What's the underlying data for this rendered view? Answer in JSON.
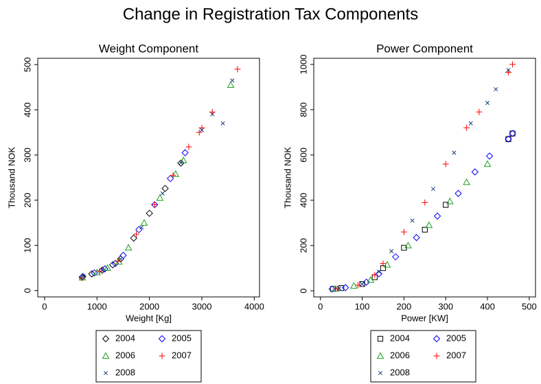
{
  "title": "Change in Registration Tax Components",
  "chart_data": [
    {
      "type": "scatter",
      "title": "Weight Component",
      "x_label": "Weight [Kg]",
      "y_label": "Thousand NOK",
      "xlim": [
        -130,
        4100
      ],
      "ylim": [
        -14,
        514
      ],
      "xticks": [
        0,
        1000,
        2000,
        3000,
        4000
      ],
      "yticks": [
        0,
        100,
        200,
        300,
        400,
        500
      ],
      "series": [
        {
          "name": "2004",
          "color": "#000000",
          "marker": "diamond",
          "x": [
            720,
            900,
            1100,
            1300,
            1450,
            1700,
            2000,
            2300,
            2600
          ],
          "values": [
            30,
            37,
            45,
            57,
            70,
            116,
            171,
            226,
            282
          ]
        },
        {
          "name": "2005",
          "color": "#0000ff",
          "marker": "diamond",
          "x": [
            730,
            950,
            1150,
            1350,
            1500,
            1800,
            2100,
            2400,
            2680
          ],
          "values": [
            31,
            39,
            48,
            60,
            78,
            135,
            190,
            248,
            305
          ]
        },
        {
          "name": "2006",
          "color": "#1e9e1e",
          "marker": "triangle",
          "x": [
            720,
            1000,
            1200,
            1420,
            1600,
            1900,
            2200,
            2500,
            2650,
            3550
          ],
          "values": [
            29,
            40,
            50,
            64,
            95,
            150,
            205,
            258,
            288,
            455
          ]
        },
        {
          "name": "2007",
          "color": "#ff0000",
          "marker": "plus",
          "x": [
            710,
            1050,
            1400,
            1750,
            2100,
            2450,
            2750,
            2950,
            3000,
            3200,
            3680
          ],
          "values": [
            28,
            43,
            65,
            125,
            190,
            255,
            318,
            350,
            360,
            395,
            490
          ]
        },
        {
          "name": "2008",
          "color": "#1a3f7a",
          "marker": "cross",
          "x": [
            740,
            1100,
            1450,
            1850,
            2250,
            2600,
            3000,
            3200,
            3400,
            3580
          ],
          "values": [
            32,
            45,
            70,
            140,
            215,
            283,
            355,
            390,
            370,
            465
          ]
        }
      ]
    },
    {
      "type": "scatter",
      "title": "Power Component",
      "x_label": "Power [KW]",
      "y_label": "Thousand NOK",
      "xlim": [
        -16,
        515
      ],
      "ylim": [
        -27,
        1027
      ],
      "xticks": [
        0,
        100,
        200,
        300,
        400,
        500
      ],
      "yticks": [
        0,
        200,
        400,
        600,
        800,
        1000
      ],
      "series": [
        {
          "name": "2004",
          "color": "#000000",
          "marker": "square",
          "x": [
            30,
            50,
            100,
            130,
            150,
            200,
            250,
            300,
            450,
            460
          ],
          "values": [
            8,
            12,
            30,
            60,
            100,
            190,
            270,
            380,
            670,
            695
          ]
        },
        {
          "name": "2005",
          "color": "#0000ff",
          "marker": "diamond",
          "x": [
            28,
            60,
            110,
            140,
            180,
            230,
            280,
            330,
            370,
            405,
            450,
            460
          ],
          "values": [
            8,
            14,
            38,
            75,
            150,
            235,
            330,
            430,
            525,
            595,
            670,
            695
          ]
        },
        {
          "name": "2006",
          "color": "#1e9e1e",
          "marker": "triangle",
          "x": [
            35,
            80,
            120,
            160,
            210,
            260,
            310,
            350,
            400
          ],
          "values": [
            9,
            22,
            48,
            115,
            200,
            290,
            395,
            480,
            560
          ]
        },
        {
          "name": "2007",
          "color": "#ff0000",
          "marker": "plus",
          "x": [
            40,
            90,
            130,
            150,
            200,
            250,
            300,
            350,
            380,
            450,
            460
          ],
          "values": [
            10,
            25,
            70,
            120,
            260,
            390,
            560,
            720,
            790,
            965,
            1000
          ]
        },
        {
          "name": "2008",
          "color": "#1a3f7a",
          "marker": "cross",
          "x": [
            45,
            100,
            140,
            170,
            220,
            270,
            320,
            360,
            400,
            420,
            450
          ],
          "values": [
            11,
            30,
            85,
            175,
            310,
            450,
            610,
            740,
            830,
            890,
            975
          ]
        }
      ]
    }
  ]
}
